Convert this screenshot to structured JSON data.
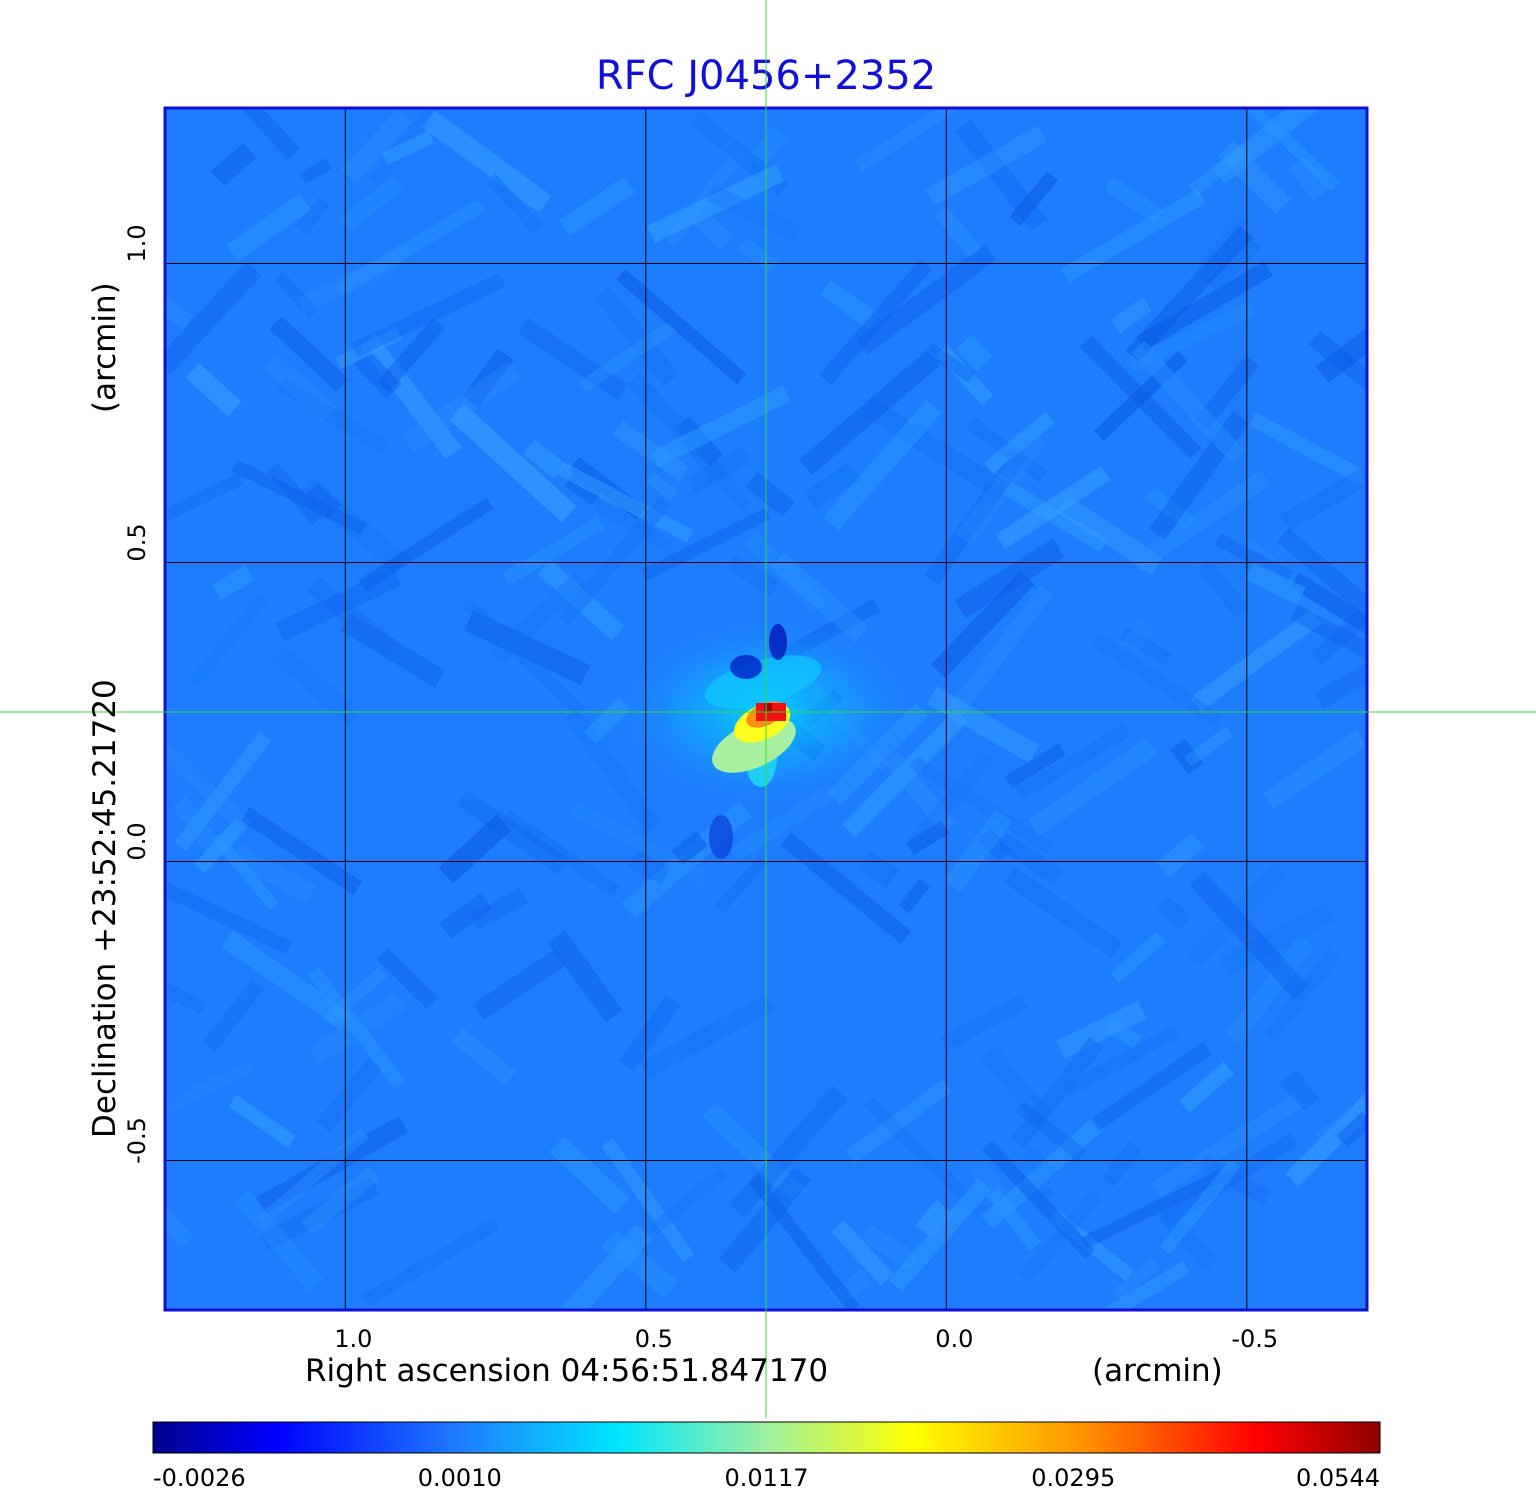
{
  "chart_data": {
    "type": "heatmap",
    "title": "RFC J0456+2352",
    "xlabel": "Right ascension  04:56:51.847170",
    "xunit": "(arcmin)",
    "ylabel": "Declination  +23:52:45.21720",
    "yunit": "(arcmin)",
    "x_ticks": [
      1.0,
      0.5,
      0.0,
      -0.5
    ],
    "x_tick_labels": [
      "1.0",
      "0.5",
      "0.0",
      "-0.5"
    ],
    "y_ticks": [
      1.0,
      0.5,
      0.0,
      -0.5
    ],
    "y_tick_labels": [
      "1.0",
      "0.5",
      "0.0",
      "-0.5"
    ],
    "xlim": [
      1.3,
      -0.7
    ],
    "ylim": [
      -0.75,
      1.26
    ],
    "grid": true,
    "crosshair": {
      "x": 0.3,
      "y": 0.25,
      "color": "#33dd33"
    },
    "peak_position": {
      "x": 0.3,
      "y": 0.25
    },
    "colormap": "jet",
    "colorbar": {
      "ticks": [
        -0.0026,
        0.001,
        0.0117,
        0.0295,
        0.0544
      ],
      "tick_labels": [
        "-0.0026",
        "0.0010",
        "0.0117",
        "0.0295",
        "0.0544"
      ]
    },
    "colors": {
      "background_map": "#1e7dff",
      "frame": "#1010d8",
      "grid": "#000000",
      "crosshair": "#33dd33",
      "title": "#1010d8"
    }
  }
}
